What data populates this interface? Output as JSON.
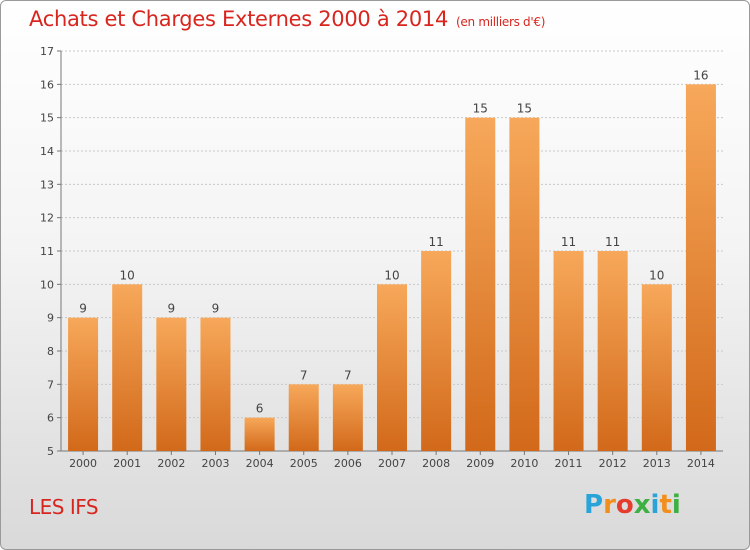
{
  "header": {
    "title": "Achats et Charges Externes 2000 à 2014",
    "subtitle": "(en milliers d'€)"
  },
  "footer": {
    "commune": "LES IFS",
    "brand": "Proxiti",
    "brand_letters": [
      "P",
      "r",
      "o",
      "x",
      "i",
      "t",
      "i"
    ],
    "brand_colors": [
      "#2aa4d8",
      "#f28e1c",
      "#e43d2f",
      "#3cb043",
      "#2aa4d8",
      "#f28e1c",
      "#3cb043"
    ]
  },
  "chart_data": {
    "type": "bar",
    "title": "Achats et Charges Externes 2000 à 2014",
    "subtitle": "(en milliers d'€)",
    "xlabel": "",
    "ylabel": "",
    "categories": [
      "2000",
      "2001",
      "2002",
      "2003",
      "2004",
      "2005",
      "2006",
      "2007",
      "2008",
      "2009",
      "2010",
      "2011",
      "2012",
      "2013",
      "2014"
    ],
    "values": [
      9,
      10,
      9,
      9,
      6,
      7,
      7,
      10,
      11,
      15,
      15,
      11,
      11,
      10,
      16
    ],
    "ylim": [
      5,
      17
    ],
    "yticks": [
      5,
      6,
      7,
      8,
      9,
      10,
      11,
      12,
      13,
      14,
      15,
      16,
      17
    ],
    "grid": true,
    "data_labels": true,
    "bar_color_top": "#f7a85a",
    "bar_color_bottom": "#d2691a"
  }
}
